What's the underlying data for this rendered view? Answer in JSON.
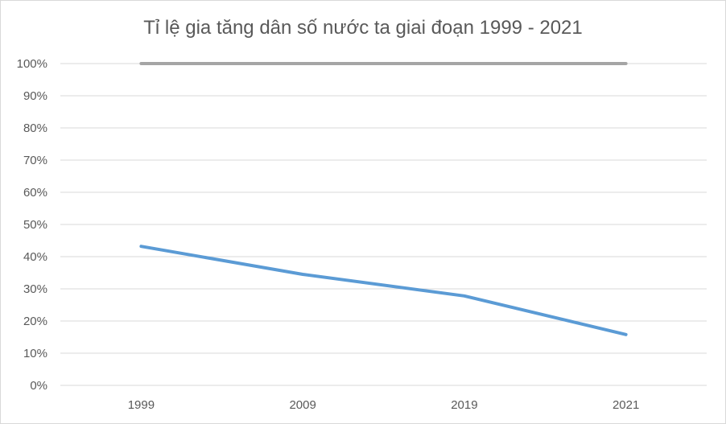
{
  "chart_data": {
    "type": "line",
    "title": "Tỉ lệ gia tăng dân số nước ta giai đoạn 1999 - 2021",
    "categories": [
      "1999",
      "2009",
      "2019",
      "2021"
    ],
    "y_tick_labels": [
      "0%",
      "10%",
      "20%",
      "30%",
      "40%",
      "50%",
      "60%",
      "70%",
      "80%",
      "90%",
      "100%"
    ],
    "ylim": [
      0,
      100
    ],
    "grid": true,
    "legend": "none",
    "series": [
      {
        "values": [
          43.2,
          34.5,
          27.8,
          15.8
        ],
        "color": "#5b9bd5"
      },
      {
        "values": [
          100,
          100,
          100,
          100
        ],
        "color": "#a5a5a5"
      }
    ]
  }
}
